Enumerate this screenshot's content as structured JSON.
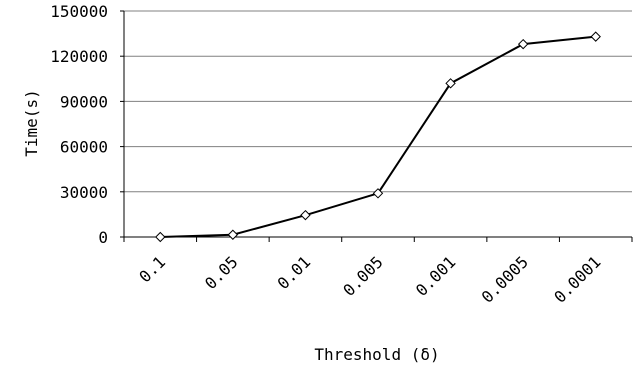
{
  "chart_data": {
    "type": "line",
    "categories": [
      "0.1",
      "0.05",
      "0.01",
      "0.005",
      "0.001",
      "0.0005",
      "0.0001"
    ],
    "series": [
      {
        "values": [
          0,
          1500,
          14500,
          29000,
          102000,
          128000,
          133000
        ]
      }
    ],
    "xlabel": "Threshold (δ)",
    "ylabel": "Time(s)",
    "ylim": [
      0,
      150000
    ],
    "yticks": [
      "0",
      "30000",
      "60000",
      "90000",
      "120000",
      "150000"
    ],
    "grid": "horizontal",
    "colors": {
      "line": "#000000",
      "marker_fill": "#ffffff",
      "grid": "#808080"
    }
  }
}
